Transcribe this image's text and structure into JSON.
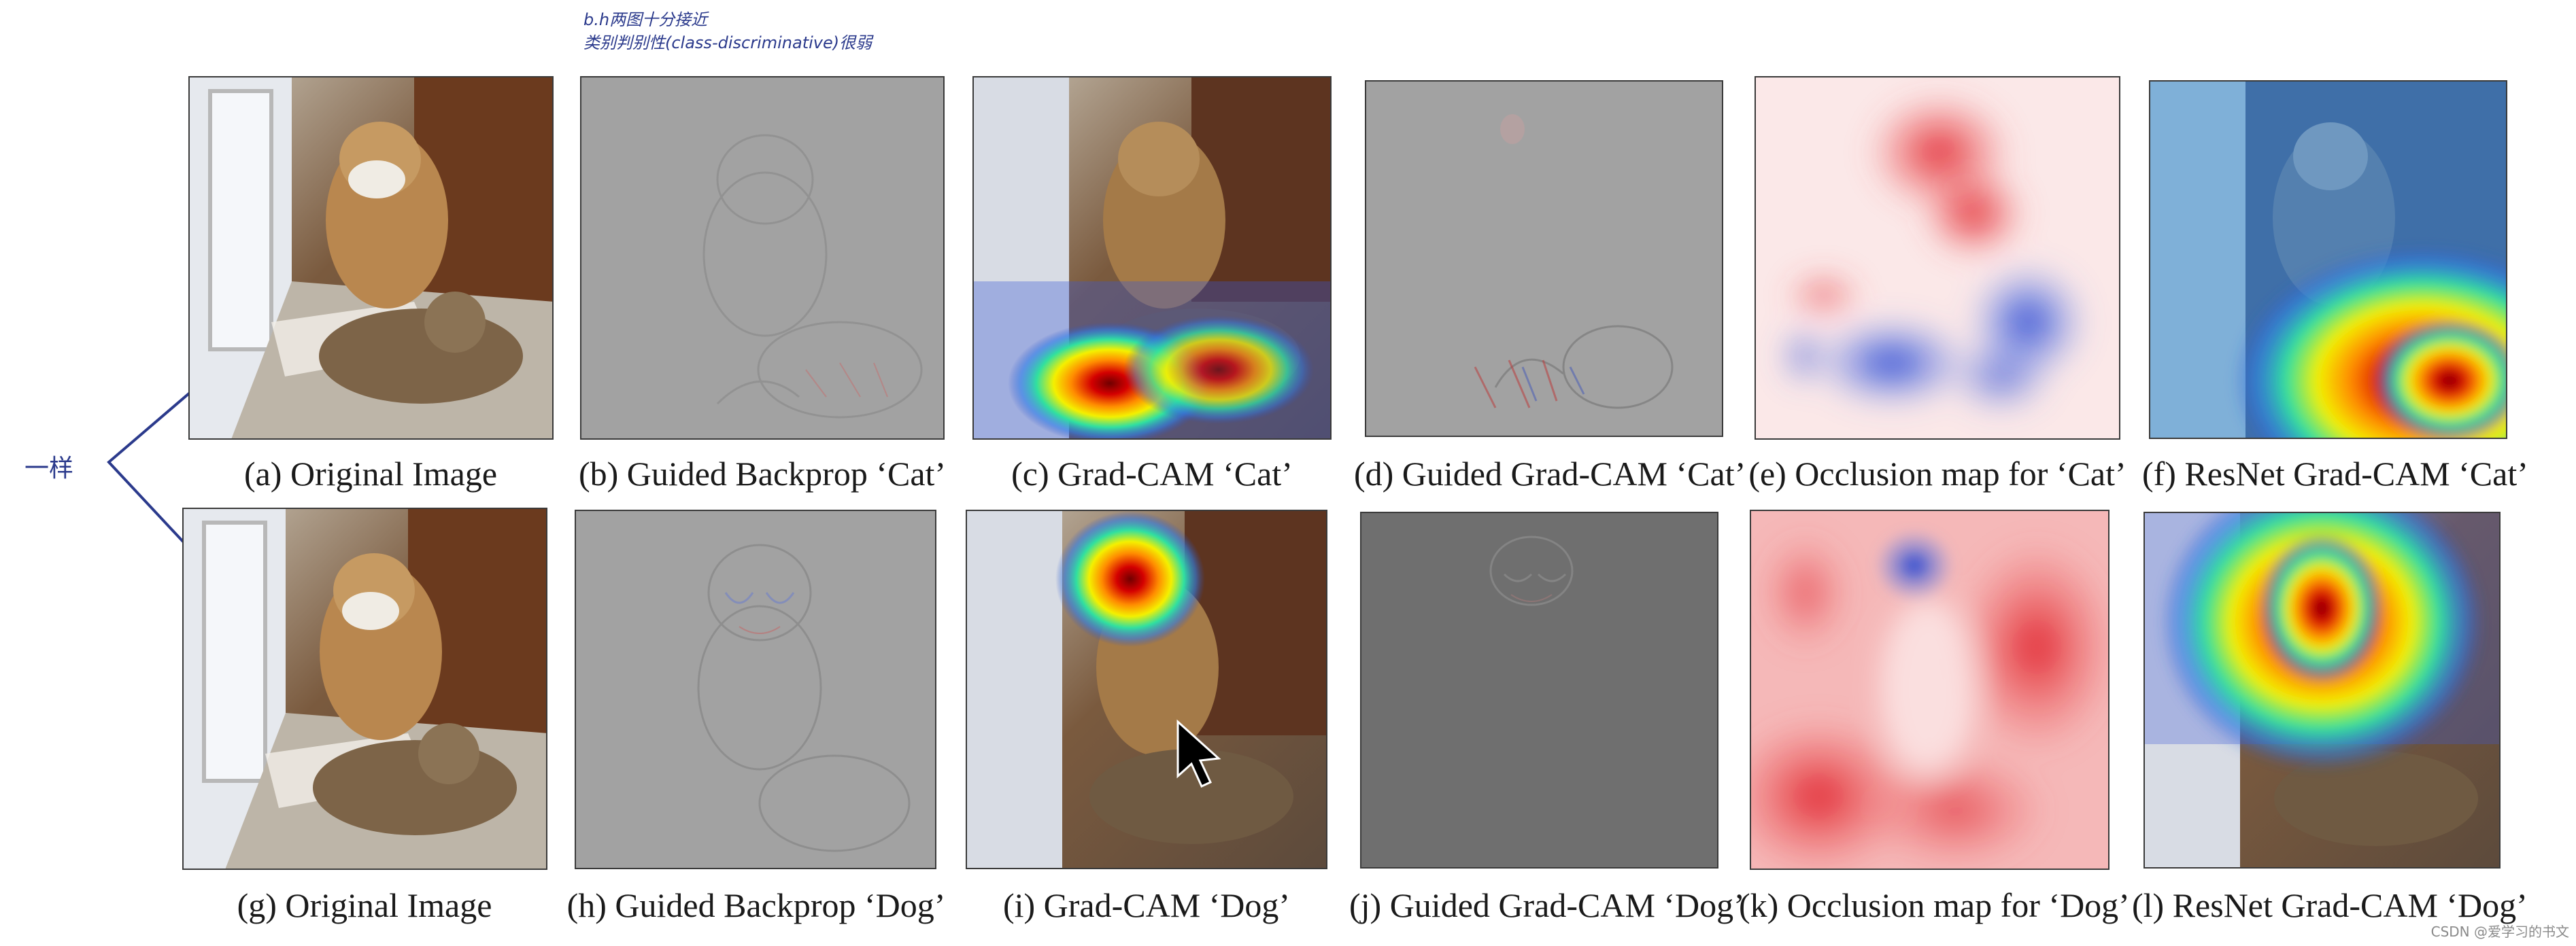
{
  "annotations": {
    "top_note_line1": "b.h两图十分接近",
    "top_note_line2": "类别判别性(class-discriminative)很弱",
    "left_note": "一样"
  },
  "row1": {
    "a": "(a) Original Image",
    "b": "(b) Guided Backprop ‘Cat’",
    "c": "(c) Grad-CAM ‘Cat’",
    "d": "(d) Guided Grad-CAM ‘Cat’",
    "e": "(e) Occlusion map for ‘Cat’",
    "f": "(f) ResNet Grad-CAM ‘Cat’"
  },
  "row2": {
    "g": "(g) Original Image",
    "h": "(h) Guided Backprop ‘Dog’",
    "i": "(i) Grad-CAM ‘Dog’",
    "j": "(j) Guided Grad-CAM ‘Dog’",
    "k": "(k) Occlusion map for ‘Dog’",
    "l": "(l) ResNet Grad-CAM ‘Dog’"
  },
  "watermark": "CSDN @爱学习的书文",
  "colors": {
    "ink": "#2b3a8c",
    "heat_red": "#d40000",
    "heat_blue": "#1f3fbf",
    "gray_bg": "#a2a2a2",
    "dark_gray_bg": "#6f6f6f"
  }
}
